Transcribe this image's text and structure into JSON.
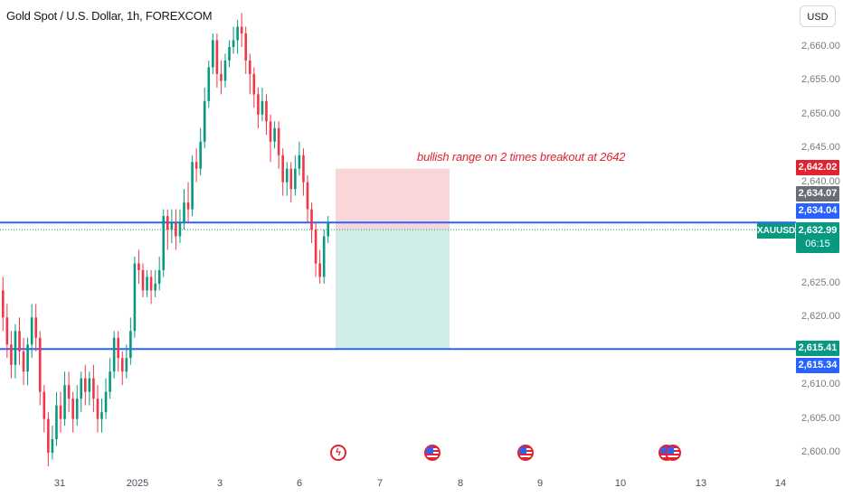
{
  "header": {
    "title": "Gold Spot / U.S. Dollar, 1h, FOREXCOM"
  },
  "annotation": {
    "text": "bullish range on 2 times breakout at 2642"
  },
  "price_axis": {
    "currency": "USD",
    "ticks": [
      "2,660.00",
      "2,655.00",
      "2,650.00",
      "2,645.00",
      "2,640.00",
      "2,625.00",
      "2,620.00",
      "2,610.00",
      "2,605.00",
      "2,600.00"
    ]
  },
  "time_axis": {
    "ticks": [
      "31",
      "2025",
      "3",
      "6",
      "7",
      "8",
      "9",
      "10",
      "13",
      "14"
    ]
  },
  "price_tags": {
    "target": "2,642.02",
    "prev": "2,634.07",
    "line_upper": "2,634.04",
    "current": "2,632.99",
    "countdown": "06:15",
    "line_lower_green": "2,615.41",
    "line_lower_blue": "2,615.34"
  },
  "symbol": "XAUUSD",
  "colors": {
    "up": "#089981",
    "down": "#f23645",
    "line": "#2962ff",
    "target_zone": "#f7c9cc",
    "stop_zone": "#c6e8e1"
  },
  "events": [
    "flash-icon",
    "us-flag-icon",
    "us-flag-icon",
    "us-flag-icon",
    "us-flag-icon"
  ],
  "chart_data": {
    "type": "candlestick",
    "title": "Gold Spot / U.S. Dollar, 1h, FOREXCOM",
    "ylim": [
      2597,
      2665
    ],
    "horizontal_lines": [
      2634.04,
      2615.34
    ],
    "position_tool": {
      "entry": 2632.99,
      "target": 2642.02,
      "stop": 2615.41
    },
    "candles": [
      [
        2624,
        2620,
        2626,
        2618
      ],
      [
        2620,
        2616,
        2622,
        2614
      ],
      [
        2616,
        2613,
        2618,
        2611
      ],
      [
        2613,
        2618,
        2619,
        2611
      ],
      [
        2618,
        2615,
        2620,
        2613
      ],
      [
        2615,
        2612,
        2617,
        2610
      ],
      [
        2612,
        2616,
        2617,
        2610
      ],
      [
        2616,
        2620,
        2622,
        2614
      ],
      [
        2620,
        2617,
        2622,
        2615
      ],
      [
        2617,
        2609,
        2618,
        2607
      ],
      [
        2609,
        2605,
        2610,
        2603
      ],
      [
        2605,
        2600,
        2606,
        2598
      ],
      [
        2600,
        2602,
        2604,
        2599
      ],
      [
        2602,
        2607,
        2609,
        2601
      ],
      [
        2607,
        2605,
        2609,
        2603
      ],
      [
        2605,
        2610,
        2612,
        2604
      ],
      [
        2610,
        2608,
        2612,
        2606
      ],
      [
        2608,
        2605,
        2609,
        2603
      ],
      [
        2605,
        2608,
        2610,
        2604
      ],
      [
        2608,
        2611,
        2612,
        2606
      ],
      [
        2611,
        2609,
        2613,
        2607
      ],
      [
        2609,
        2611,
        2612,
        2607
      ],
      [
        2611,
        2608,
        2613,
        2606
      ],
      [
        2608,
        2605,
        2610,
        2603
      ],
      [
        2605,
        2606,
        2608,
        2603
      ],
      [
        2606,
        2609,
        2611,
        2605
      ],
      [
        2609,
        2612,
        2614,
        2608
      ],
      [
        2612,
        2617,
        2618,
        2611
      ],
      [
        2617,
        2614,
        2618,
        2612
      ],
      [
        2614,
        2612,
        2615,
        2610
      ],
      [
        2612,
        2614,
        2616,
        2611
      ],
      [
        2614,
        2618,
        2620,
        2613
      ],
      [
        2618,
        2628,
        2629,
        2617
      ],
      [
        2628,
        2627,
        2630,
        2625
      ],
      [
        2627,
        2624,
        2628,
        2623
      ],
      [
        2624,
        2626,
        2627,
        2623
      ],
      [
        2626,
        2624,
        2627,
        2622
      ],
      [
        2624,
        2625,
        2627,
        2623
      ],
      [
        2625,
        2627,
        2629,
        2624
      ],
      [
        2627,
        2635,
        2636,
        2626
      ],
      [
        2635,
        2633,
        2636,
        2630
      ],
      [
        2633,
        2634,
        2636,
        2631
      ],
      [
        2634,
        2632,
        2636,
        2630
      ],
      [
        2632,
        2634,
        2636,
        2631
      ],
      [
        2634,
        2637,
        2639,
        2633
      ],
      [
        2637,
        2636,
        2640,
        2634
      ],
      [
        2636,
        2643,
        2644,
        2635
      ],
      [
        2643,
        2642,
        2645,
        2640
      ],
      [
        2642,
        2646,
        2648,
        2641
      ],
      [
        2646,
        2652,
        2654,
        2645
      ],
      [
        2652,
        2657,
        2658,
        2651
      ],
      [
        2657,
        2661,
        2662,
        2656
      ],
      [
        2661,
        2656,
        2662,
        2654
      ],
      [
        2656,
        2655,
        2658,
        2653
      ],
      [
        2655,
        2658,
        2659,
        2654
      ],
      [
        2658,
        2660,
        2661,
        2657
      ],
      [
        2660,
        2661,
        2663,
        2659
      ],
      [
        2661,
        2663,
        2664,
        2659
      ],
      [
        2663,
        2662,
        2665,
        2660
      ],
      [
        2662,
        2658,
        2663,
        2656
      ],
      [
        2658,
        2656,
        2659,
        2653
      ],
      [
        2656,
        2653,
        2657,
        2651
      ],
      [
        2653,
        2650,
        2654,
        2648
      ],
      [
        2650,
        2652,
        2654,
        2649
      ],
      [
        2652,
        2649,
        2653,
        2647
      ],
      [
        2649,
        2646,
        2650,
        2643
      ],
      [
        2646,
        2648,
        2649,
        2645
      ],
      [
        2648,
        2644,
        2649,
        2642
      ],
      [
        2644,
        2640,
        2645,
        2638
      ],
      [
        2640,
        2642,
        2643,
        2638
      ],
      [
        2642,
        2639,
        2643,
        2637
      ],
      [
        2639,
        2642,
        2644,
        2638
      ],
      [
        2642,
        2644,
        2646,
        2641
      ],
      [
        2644,
        2640,
        2645,
        2638
      ],
      [
        2640,
        2636,
        2641,
        2634
      ],
      [
        2636,
        2633,
        2637,
        2631
      ],
      [
        2633,
        2628,
        2634,
        2626
      ],
      [
        2628,
        2626,
        2630,
        2625
      ],
      [
        2626,
        2632,
        2633,
        2625
      ],
      [
        2632,
        2634,
        2635,
        2631
      ]
    ]
  }
}
